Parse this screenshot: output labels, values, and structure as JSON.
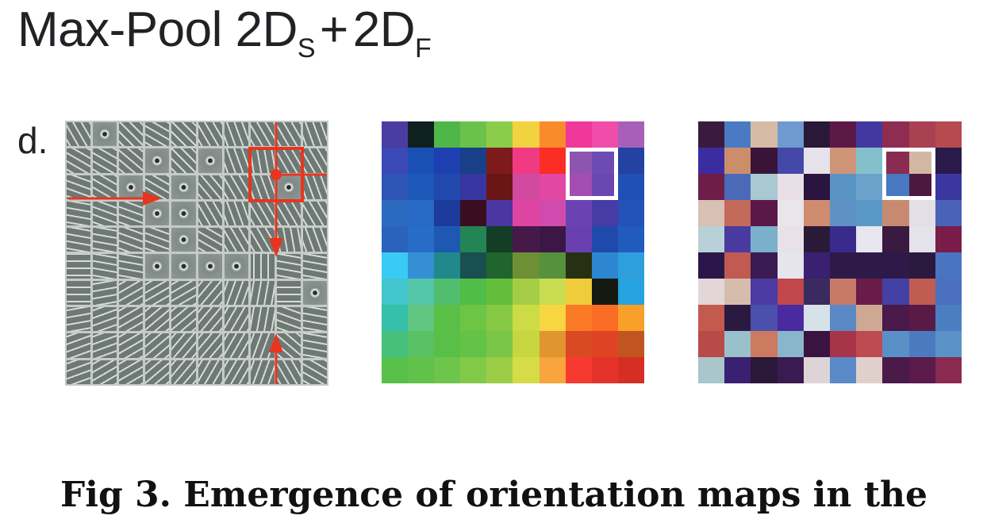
{
  "title": {
    "main": "Max-Pool 2D",
    "sub_s": "S",
    "plus": "+",
    "main2": "2D",
    "sub_f": "F"
  },
  "panel_label": "d.",
  "caption": "Fig 3.  Emergence of orientation maps in the",
  "colors": {
    "marker": "#e8351f",
    "highlight_border": "#ffffff",
    "filter_frame": "#c6cbc7"
  },
  "filter_bank": {
    "rows": 10,
    "cols": 10,
    "orientations": [
      [
        60,
        "dot",
        45,
        30,
        45,
        60,
        70,
        60,
        60,
        70
      ],
      [
        30,
        30,
        40,
        "dot",
        45,
        "dot",
        70,
        80,
        60,
        60
      ],
      [
        20,
        30,
        "dot",
        30,
        "dot",
        50,
        60,
        70,
        "dot",
        70
      ],
      [
        10,
        20,
        20,
        "dot",
        "dot",
        60,
        70,
        60,
        60,
        60
      ],
      [
        10,
        10,
        20,
        20,
        "dot",
        30,
        60,
        60,
        80,
        70
      ],
      [
        0,
        10,
        10,
        "dot",
        "dot",
        "dot",
        "dot",
        90,
        10,
        10
      ],
      [
        0,
        170,
        150,
        150,
        150,
        130,
        110,
        100,
        0,
        "dot"
      ],
      [
        170,
        160,
        150,
        140,
        140,
        130,
        120,
        100,
        20,
        10
      ],
      [
        160,
        160,
        150,
        140,
        130,
        130,
        120,
        110,
        40,
        10
      ],
      [
        160,
        150,
        150,
        140,
        130,
        120,
        120,
        110,
        60,
        30
      ]
    ],
    "markers": {
      "pool_box": {
        "row": 1,
        "col": 7,
        "size": 2
      },
      "arrow_right_row": 3,
      "arrow_down_col": 8,
      "arrow_up_col": 8
    }
  },
  "orientation_map": {
    "rows": 10,
    "cols": 10,
    "cells": [
      [
        "#4b3ca1",
        "#0f2020",
        "#4fb648",
        "#6ac24b",
        "#8ccc4c",
        "#f2d23e",
        "#fb8a2d",
        "#f0389a",
        "#ef4da9",
        "#a85fba"
      ],
      [
        "#3b49b6",
        "#1a50b3",
        "#1d3fb0",
        "#183f88",
        "#7d1b1b",
        "#f03a84",
        "#fb2d25",
        "#8e55b0",
        "#6e4bb4",
        "#2342a2"
      ],
      [
        "#2e55b6",
        "#1b58b7",
        "#2048ad",
        "#3735a0",
        "#6b1616",
        "#d04aa0",
        "#e247a4",
        "#a34eb0",
        "#6a47b0",
        "#2050b4"
      ],
      [
        "#2b6bbf",
        "#2769c4",
        "#1c3a9c",
        "#3a0e1e",
        "#4b36a4",
        "#de44a1",
        "#d04bae",
        "#6b42b2",
        "#473ba4",
        "#2453b8"
      ],
      [
        "#2a62bc",
        "#276dc5",
        "#1f58b2",
        "#238556",
        "#153d25",
        "#451a4a",
        "#3c1746",
        "#6a3fb0",
        "#1f4aac",
        "#215cbd"
      ],
      [
        "#3acbf4",
        "#358fd4",
        "#21888c",
        "#194f50",
        "#20642e",
        "#6d8f35",
        "#56913b",
        "#273013",
        "#2d87d0",
        "#2e9fdc"
      ],
      [
        "#42c5cc",
        "#54c7aa",
        "#50be6e",
        "#4fbd47",
        "#64be3c",
        "#a5cc45",
        "#c8dc52",
        "#f0cc3a",
        "#141a10",
        "#26a3e0"
      ],
      [
        "#34c0aa",
        "#60c580",
        "#5abf47",
        "#6ec444",
        "#87c944",
        "#cbdc44",
        "#f8d642",
        "#fb7a26",
        "#fb6c24",
        "#f8a029"
      ],
      [
        "#44c07a",
        "#5ac264",
        "#5abf47",
        "#63c346",
        "#7ac647",
        "#c7d540",
        "#e0952f",
        "#d94a23",
        "#de4423",
        "#c05521"
      ],
      [
        "#58bf49",
        "#62c14a",
        "#6dc54b",
        "#82c948",
        "#9ccd47",
        "#d5dc46",
        "#f7a53c",
        "#f73a2f",
        "#e4332a",
        "#d62e25"
      ]
    ],
    "highlight": {
      "row": 1,
      "col": 7,
      "size": 2
    }
  },
  "scrambled_map": {
    "rows": 10,
    "cols": 10,
    "cells": [
      [
        "#3a1a3e",
        "#4b7ac4",
        "#d5bba6",
        "#6f9ad0",
        "#2a1838",
        "#5c1846",
        "#4338a0",
        "#8f2c52",
        "#a94152",
        "#b64a50"
      ],
      [
        "#3b2da0",
        "#cc8e6a",
        "#3a1438",
        "#4448a8",
        "#e6e2ea",
        "#cf9478",
        "#84c0cc",
        "#8a2b50",
        "#d2b8a4",
        "#2a1a4a"
      ],
      [
        "#6e1c48",
        "#4a6ab8",
        "#a8c8d2",
        "#e8e0e6",
        "#2a1440",
        "#5a94c4",
        "#6aa2cc",
        "#4878c0",
        "#4a1840",
        "#3a38a0"
      ],
      [
        "#d8c0b4",
        "#c46a5a",
        "#5a1848",
        "#e8e6ea",
        "#d08c6e",
        "#5e92c4",
        "#5a98c8",
        "#c78a70",
        "#e2e0e6",
        "#4a62b8"
      ],
      [
        "#b8d0d8",
        "#4a3aa0",
        "#7ab0cc",
        "#e8e2e8",
        "#2a1a38",
        "#3a2a8c",
        "#e8e6ee",
        "#3a1a40",
        "#e4e2ea",
        "#7a1c4a"
      ],
      [
        "#2a1648",
        "#c25a54",
        "#3a1a50",
        "#e6e4ec",
        "#3a2070",
        "#2e1a48",
        "#2e1a48",
        "#2e1a48",
        "#2a1a40",
        "#4a74c0"
      ],
      [
        "#e2d6d8",
        "#d6bcac",
        "#4a3aa2",
        "#c0484c",
        "#3a2a60",
        "#c87a68",
        "#6a1c48",
        "#4440a4",
        "#c05c52",
        "#4a70be"
      ],
      [
        "#c25a50",
        "#2a1a40",
        "#4a50ac",
        "#4a2aa0",
        "#d6e2e8",
        "#5a88c4",
        "#cfa894",
        "#4a1a4a",
        "#5a1a48",
        "#4a7ec0"
      ],
      [
        "#b84a48",
        "#9ac0cc",
        "#cc7a60",
        "#8ab6cc",
        "#3a1440",
        "#a8344a",
        "#be4a52",
        "#5a90c8",
        "#4a7ac0",
        "#5a92c8"
      ],
      [
        "#a8c6cc",
        "#3a2070",
        "#2a1838",
        "#3a1a50",
        "#ded4d8",
        "#5a8ac8",
        "#e0d0cc",
        "#4a1a48",
        "#5a1a4a",
        "#8a2a50"
      ]
    ],
    "highlight": {
      "row": 1,
      "col": 7,
      "size": 2
    }
  }
}
